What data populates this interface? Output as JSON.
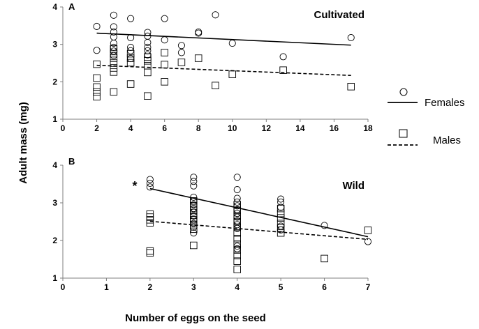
{
  "chart_data": [
    {
      "type": "scatter",
      "panel_label": "A",
      "title": "Cultivated",
      "xlabel": "Number of eggs on the seed",
      "ylabel": "Adult mass (mg)",
      "xlim": [
        0,
        18
      ],
      "ylim": [
        1,
        4
      ],
      "xticks": [
        "0",
        "2",
        "4",
        "6",
        "8",
        "10",
        "12",
        "14",
        "16",
        "18"
      ],
      "yticks": [
        "1",
        "2",
        "3",
        "4"
      ],
      "grid": false,
      "series": [
        {
          "name": "Females",
          "marker": "circle",
          "points": [
            [
              2,
              3.48
            ],
            [
              2,
              2.84
            ],
            [
              3,
              3.78
            ],
            [
              3,
              3.47
            ],
            [
              3,
              3.33
            ],
            [
              3,
              3.2
            ],
            [
              3,
              3.03
            ],
            [
              3,
              2.92
            ],
            [
              3,
              2.82
            ],
            [
              3,
              2.7
            ],
            [
              4,
              3.69
            ],
            [
              4,
              3.18
            ],
            [
              4,
              2.92
            ],
            [
              4,
              2.83
            ],
            [
              4,
              2.62
            ],
            [
              5,
              3.32
            ],
            [
              5,
              3.22
            ],
            [
              5,
              3.05
            ],
            [
              5,
              2.92
            ],
            [
              5,
              2.83
            ],
            [
              5,
              2.72
            ],
            [
              6,
              3.69
            ],
            [
              6,
              3.12
            ],
            [
              7,
              2.97
            ],
            [
              7,
              2.78
            ],
            [
              8,
              3.33
            ],
            [
              8,
              3.3
            ],
            [
              9,
              3.79
            ],
            [
              10,
              3.03
            ],
            [
              13,
              2.67
            ],
            [
              17,
              3.18
            ]
          ],
          "trend": [
            [
              2,
              3.3
            ],
            [
              17,
              2.98
            ]
          ]
        },
        {
          "name": "Males",
          "marker": "square",
          "points": [
            [
              2,
              2.47
            ],
            [
              2,
              2.1
            ],
            [
              2,
              1.86
            ],
            [
              2,
              1.73
            ],
            [
              2,
              1.6
            ],
            [
              3,
              2.88
            ],
            [
              3,
              2.75
            ],
            [
              3,
              2.63
            ],
            [
              3,
              2.5
            ],
            [
              3,
              2.37
            ],
            [
              3,
              2.26
            ],
            [
              3,
              1.73
            ],
            [
              4,
              2.75
            ],
            [
              4,
              2.63
            ],
            [
              4,
              2.51
            ],
            [
              4,
              1.94
            ],
            [
              5,
              2.66
            ],
            [
              5,
              2.56
            ],
            [
              5,
              2.43
            ],
            [
              5,
              2.25
            ],
            [
              5,
              1.62
            ],
            [
              6,
              2.78
            ],
            [
              6,
              2.46
            ],
            [
              6,
              2.0
            ],
            [
              7,
              2.52
            ],
            [
              8,
              2.63
            ],
            [
              9,
              1.9
            ],
            [
              10,
              2.2
            ],
            [
              13,
              2.31
            ],
            [
              17,
              1.87
            ]
          ],
          "trend": [
            [
              2,
              2.44
            ],
            [
              17,
              2.17
            ]
          ]
        }
      ]
    },
    {
      "type": "scatter",
      "panel_label": "B",
      "title": "Wild",
      "annotation": "*",
      "xlabel": "Number of eggs on the seed",
      "ylabel": "Adult mass (mg)",
      "xlim": [
        0,
        7
      ],
      "ylim": [
        1,
        4
      ],
      "xticks": [
        "0",
        "1",
        "2",
        "3",
        "4",
        "5",
        "6",
        "7"
      ],
      "yticks": [
        "1",
        "2",
        "3",
        "4"
      ],
      "grid": false,
      "series": [
        {
          "name": "Females",
          "marker": "circle",
          "points": [
            [
              2,
              3.62
            ],
            [
              2,
              3.52
            ],
            [
              2,
              3.42
            ],
            [
              3,
              3.68
            ],
            [
              3,
              3.57
            ],
            [
              3,
              3.45
            ],
            [
              3,
              3.15
            ],
            [
              3,
              3.05
            ],
            [
              3,
              2.95
            ],
            [
              3,
              2.85
            ],
            [
              3,
              2.75
            ],
            [
              3,
              2.65
            ],
            [
              3,
              2.55
            ],
            [
              3,
              2.45
            ],
            [
              3,
              2.35
            ],
            [
              3,
              2.2
            ],
            [
              4,
              3.68
            ],
            [
              4,
              3.35
            ],
            [
              4,
              3.12
            ],
            [
              4,
              3.02
            ],
            [
              4,
              2.92
            ],
            [
              4,
              2.82
            ],
            [
              4,
              2.72
            ],
            [
              4,
              2.62
            ],
            [
              4,
              2.52
            ],
            [
              4,
              2.42
            ],
            [
              4,
              2.32
            ],
            [
              4,
              1.85
            ],
            [
              4,
              1.78
            ],
            [
              5,
              3.1
            ],
            [
              5,
              3.02
            ],
            [
              5,
              2.88
            ],
            [
              5,
              2.38
            ],
            [
              5,
              2.28
            ],
            [
              6,
              2.4
            ],
            [
              7,
              1.97
            ]
          ],
          "trend": [
            [
              2,
              3.38
            ],
            [
              7,
              2.1
            ]
          ]
        },
        {
          "name": "Males",
          "marker": "square",
          "points": [
            [
              2,
              2.7
            ],
            [
              2,
              2.62
            ],
            [
              2,
              2.55
            ],
            [
              2,
              2.47
            ],
            [
              2,
              1.72
            ],
            [
              2,
              1.67
            ],
            [
              3,
              3.05
            ],
            [
              3,
              2.92
            ],
            [
              3,
              2.8
            ],
            [
              3,
              2.67
            ],
            [
              3,
              2.55
            ],
            [
              3,
              2.42
            ],
            [
              3,
              2.3
            ],
            [
              3,
              1.87
            ],
            [
              4,
              2.95
            ],
            [
              4,
              2.8
            ],
            [
              4,
              2.65
            ],
            [
              4,
              2.5
            ],
            [
              4,
              2.35
            ],
            [
              4,
              2.2
            ],
            [
              4,
              2.05
            ],
            [
              4,
              1.9
            ],
            [
              4,
              1.75
            ],
            [
              4,
              1.6
            ],
            [
              4,
              1.45
            ],
            [
              4,
              1.23
            ],
            [
              5,
              2.85
            ],
            [
              5,
              2.72
            ],
            [
              5,
              2.6
            ],
            [
              5,
              2.45
            ],
            [
              5,
              2.33
            ],
            [
              5,
              2.2
            ],
            [
              6,
              1.52
            ],
            [
              7,
              2.27
            ]
          ],
          "trend": [
            [
              2,
              2.51
            ],
            [
              7,
              2.03
            ]
          ]
        }
      ]
    }
  ],
  "legend": {
    "placement": "right",
    "items": [
      {
        "label": "Females",
        "marker": "circle",
        "line": "solid"
      },
      {
        "label": "Males",
        "marker": "square",
        "line": "dashed"
      }
    ]
  },
  "shared_labels": {
    "xlabel": "Number of eggs on the seed",
    "ylabel": "Adult mass (mg)"
  }
}
